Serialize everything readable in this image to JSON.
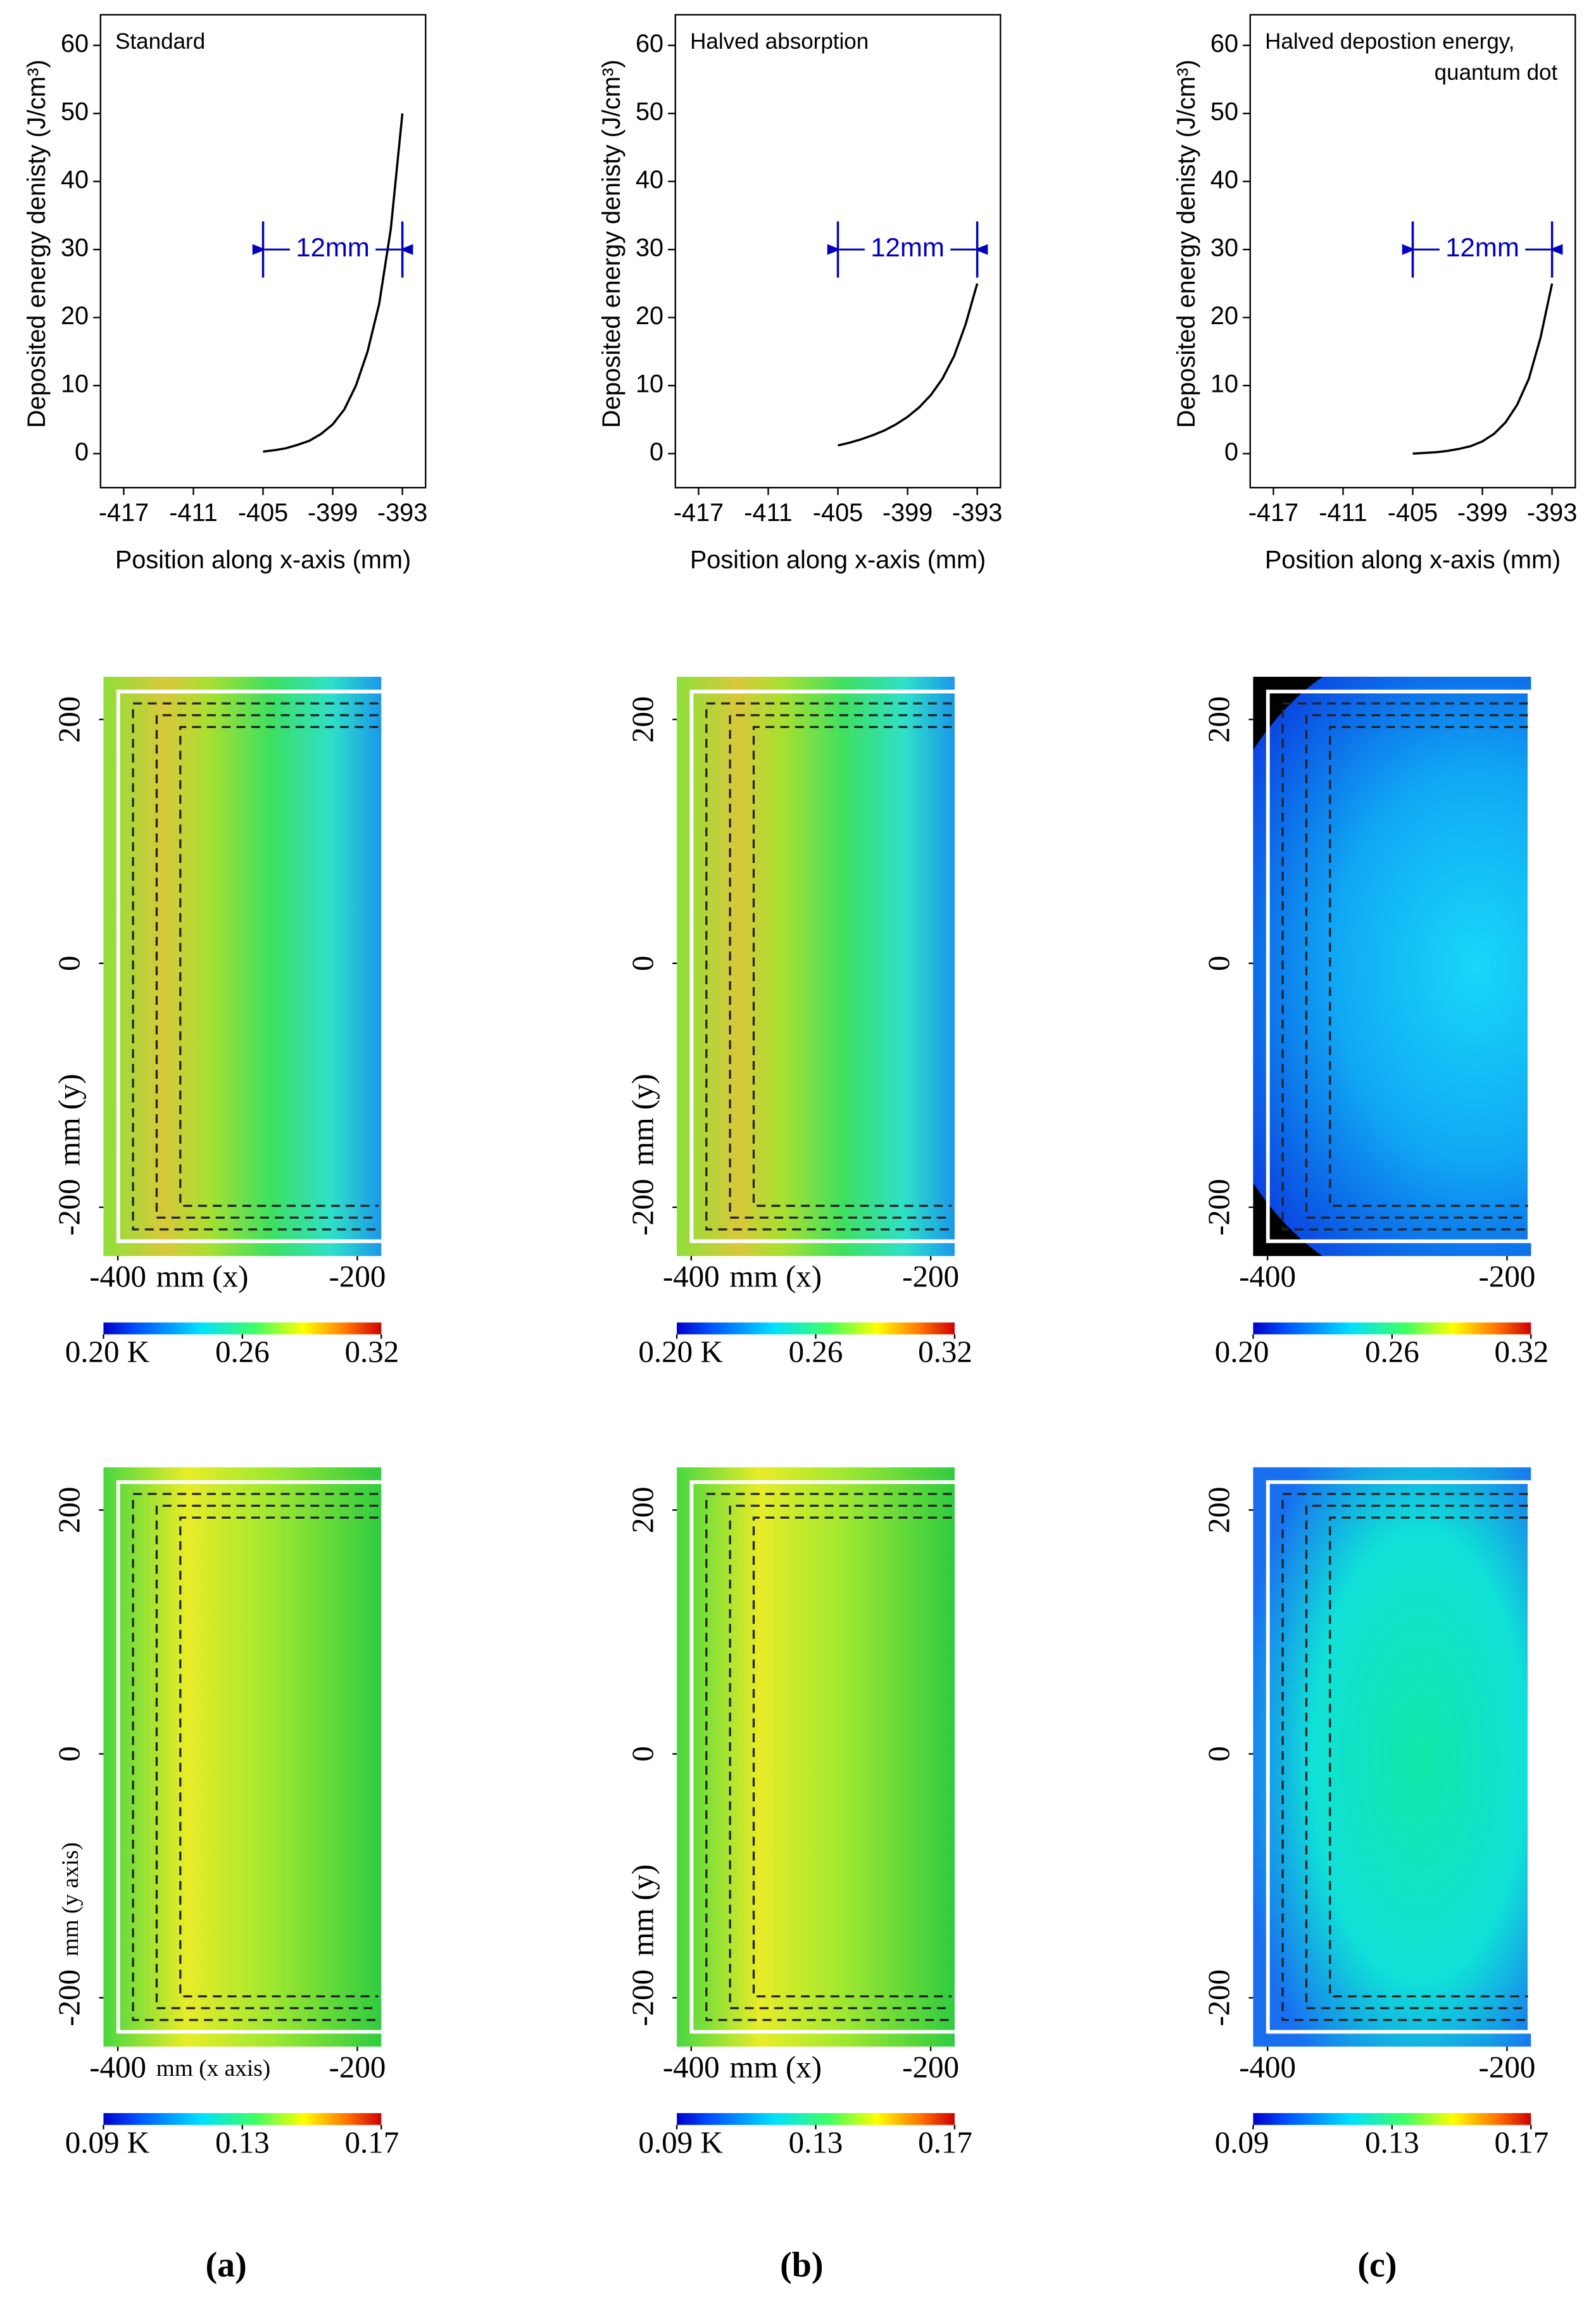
{
  "chart_data": [
    {
      "type": "line",
      "title": "Standard",
      "xlabel": "Position along x-axis (mm)",
      "ylabel": "Deposited energy denisty (J/cm³)",
      "x": [
        -405,
        -404,
        -403,
        -402,
        -401,
        -400,
        -399,
        -398,
        -397,
        -396,
        -395,
        -394,
        -393
      ],
      "values": [
        0.3,
        0.5,
        0.8,
        1.3,
        1.9,
        2.9,
        4.3,
        6.5,
        10,
        15,
        22,
        33,
        50
      ],
      "color": "#000000",
      "xlim": [
        -419,
        -391
      ],
      "ylim": [
        -5,
        64.5
      ],
      "xticks": [
        -417,
        -411,
        -405,
        -399,
        -393
      ],
      "yticks": [
        0,
        10,
        20,
        30,
        40,
        50,
        60
      ],
      "annotation": {
        "text": "12mm",
        "x": [
          -405,
          -393
        ],
        "y": 30,
        "color": "#0000c0"
      }
    },
    {
      "type": "line",
      "title": "Halved absorption",
      "xlabel": "Position along x-axis (mm)",
      "ylabel": "Deposited energy denisty (J/cm³)",
      "x": [
        -405,
        -404,
        -403,
        -402,
        -401,
        -400,
        -399,
        -398,
        -397,
        -396,
        -395,
        -394,
        -393
      ],
      "values": [
        1.2,
        1.6,
        2.1,
        2.7,
        3.4,
        4.3,
        5.4,
        6.8,
        8.6,
        11,
        14.3,
        19,
        25
      ],
      "color": "#000000",
      "xlim": [
        -419,
        -391
      ],
      "ylim": [
        -5,
        64.5
      ],
      "xticks": [
        -417,
        -411,
        -405,
        -399,
        -393
      ],
      "yticks": [
        0,
        10,
        20,
        30,
        40,
        50,
        60
      ],
      "annotation": {
        "text": "12mm",
        "x": [
          -405,
          -393
        ],
        "y": 30,
        "color": "#0000c0"
      }
    },
    {
      "type": "line",
      "title": [
        "Halved depostion energy,",
        "quantum dot"
      ],
      "xlabel": "Position along x-axis (mm)",
      "ylabel": "Deposited energy denisty (J/cm³)",
      "x": [
        -405,
        -404,
        -403,
        -402,
        -401,
        -400,
        -399,
        -398,
        -397,
        -396,
        -395,
        -394,
        -393
      ],
      "values": [
        0,
        0.1,
        0.2,
        0.4,
        0.7,
        1.1,
        1.8,
        2.9,
        4.6,
        7.2,
        11,
        17,
        25
      ],
      "color": "#000000",
      "xlim": [
        -419,
        -391
      ],
      "ylim": [
        -5,
        64.5
      ],
      "xticks": [
        -417,
        -411,
        -405,
        -399,
        -393
      ],
      "yticks": [
        0,
        10,
        20,
        30,
        40,
        50,
        60
      ],
      "annotation": {
        "text": "12mm",
        "x": [
          -405,
          -393
        ],
        "y": 30,
        "color": "#0000c0"
      }
    },
    {
      "type": "heatmap",
      "xlim": [
        -412,
        -180
      ],
      "ylim": [
        -240,
        235
      ],
      "xticks": [
        -400,
        -200
      ],
      "yticks": [
        200,
        0,
        -200
      ],
      "xlabel": "mm (x)",
      "ylabel": "mm (y)",
      "colorbar": {
        "lim": [
          0.2,
          0.32
        ],
        "ticks": [
          {
            "value": 0.2,
            "label": "0.20 K"
          },
          0.26,
          0.32
        ]
      }
    },
    {
      "type": "heatmap",
      "xlim": [
        -412,
        -180
      ],
      "ylim": [
        -240,
        235
      ],
      "xticks": [
        -400,
        -200
      ],
      "yticks": [
        200,
        0,
        -200
      ],
      "xlabel": "mm (x)",
      "ylabel": "mm (y)",
      "colorbar": {
        "lim": [
          0.2,
          0.32
        ],
        "ticks": [
          {
            "value": 0.2,
            "label": "0.20 K"
          },
          0.26,
          0.32
        ]
      }
    },
    {
      "type": "heatmap",
      "xlim": [
        -412,
        -180
      ],
      "ylim": [
        -240,
        235
      ],
      "xticks": [
        -400,
        -200
      ],
      "yticks": [
        200,
        0,
        -200
      ],
      "colorbar": {
        "lim": [
          0.2,
          0.32
        ],
        "ticks": [
          {
            "value": 0.2,
            "label": "0.20"
          },
          0.26,
          0.32
        ]
      }
    },
    {
      "type": "heatmap",
      "xlim": [
        -412,
        -180
      ],
      "ylim": [
        -240,
        235
      ],
      "xticks": [
        -400,
        -200
      ],
      "yticks": [
        200,
        0,
        -200
      ],
      "xlabel": "mm (x axis)",
      "ylabel": "mm (y axis)",
      "colorbar": {
        "lim": [
          0.09,
          0.17
        ],
        "ticks": [
          {
            "value": 0.09,
            "label": "0.09 K"
          },
          0.13,
          0.17
        ]
      }
    },
    {
      "type": "heatmap",
      "xlim": [
        -412,
        -180
      ],
      "ylim": [
        -240,
        235
      ],
      "xticks": [
        -400,
        -200
      ],
      "yticks": [
        200,
        0,
        -200
      ],
      "xlabel": "mm (x)",
      "ylabel": "mm (y)",
      "colorbar": {
        "lim": [
          0.09,
          0.17
        ],
        "ticks": [
          {
            "value": 0.09,
            "label": "0.09 K"
          },
          0.13,
          0.17
        ]
      }
    },
    {
      "type": "heatmap",
      "xlim": [
        -412,
        -180
      ],
      "ylim": [
        -240,
        235
      ],
      "xticks": [
        -400,
        -200
      ],
      "yticks": [
        200,
        0,
        -200
      ],
      "colorbar": {
        "lim": [
          0.09,
          0.17
        ],
        "ticks": [
          0.09,
          0.13,
          0.17
        ]
      }
    }
  ],
  "panel_labels": [
    "(a)",
    "(b)",
    "(c)"
  ]
}
